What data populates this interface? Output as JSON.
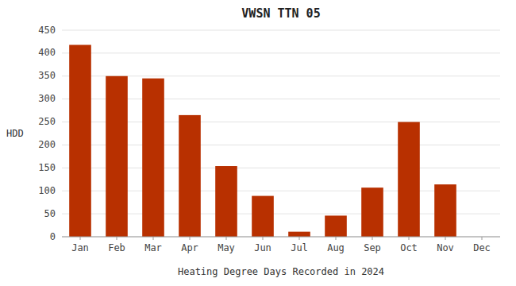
{
  "chart_data": {
    "type": "bar",
    "title": "VWSN TTN 05",
    "xlabel": "Heating Degree Days Recorded in 2024",
    "ylabel": "HDD",
    "categories": [
      "Jan",
      "Feb",
      "Mar",
      "Apr",
      "May",
      "Jun",
      "Jul",
      "Aug",
      "Sep",
      "Oct",
      "Nov",
      "Dec"
    ],
    "values": [
      418,
      350,
      345,
      265,
      154,
      89,
      11,
      46,
      107,
      250,
      114,
      0
    ],
    "color": "#b83000",
    "ylim": [
      0,
      450
    ],
    "yticks": [
      0,
      50,
      100,
      150,
      200,
      250,
      300,
      350,
      400,
      450
    ],
    "grid": true
  }
}
